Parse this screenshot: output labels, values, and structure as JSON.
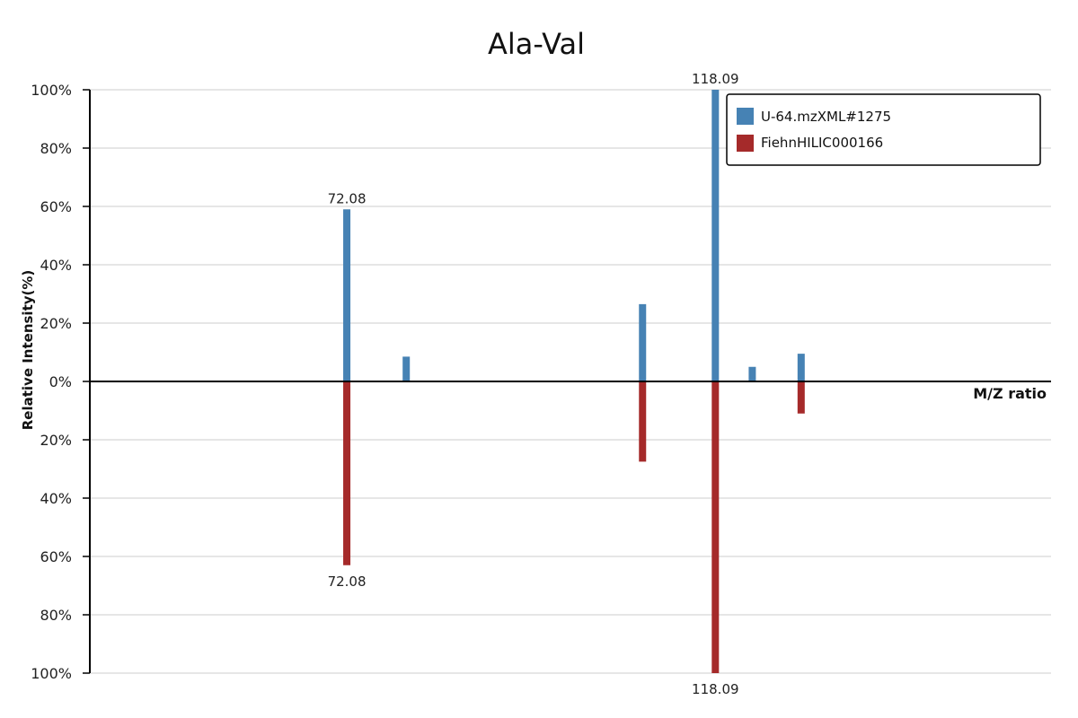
{
  "chart_data": {
    "type": "bar",
    "title": "Ala-Val",
    "ylabel": "Relative Intensity(%)",
    "xlabel": "M/Z ratio",
    "yticks_top": [
      "100%",
      "80%",
      "60%",
      "40%",
      "20%",
      "0%"
    ],
    "yticks_bottom": [
      "20%",
      "40%",
      "60%",
      "80%",
      "100%"
    ],
    "ylim": [
      -100,
      100
    ],
    "xlim": [
      40,
      160
    ],
    "grid": true,
    "legend_position": "top-right",
    "series": [
      {
        "name": "U-64.mzXML#1275",
        "color": "#4682b4",
        "direction": "up",
        "peaks": [
          {
            "mz": 72.08,
            "intensity": 59,
            "label": "72.08"
          },
          {
            "mz": 79.5,
            "intensity": 8.5
          },
          {
            "mz": 118.09,
            "intensity": 100,
            "label": "118.09"
          },
          {
            "mz": 109.0,
            "intensity": 26.5
          },
          {
            "mz": 122.7,
            "intensity": 5
          },
          {
            "mz": 128.8,
            "intensity": 9.5
          }
        ]
      },
      {
        "name": "FiehnHILIC000166",
        "color": "#a52a2a",
        "direction": "down",
        "peaks": [
          {
            "mz": 72.08,
            "intensity": 63,
            "label": "72.08"
          },
          {
            "mz": 118.09,
            "intensity": 100,
            "label": "118.09"
          },
          {
            "mz": 109.0,
            "intensity": 27.5
          },
          {
            "mz": 128.8,
            "intensity": 11
          }
        ]
      }
    ]
  }
}
